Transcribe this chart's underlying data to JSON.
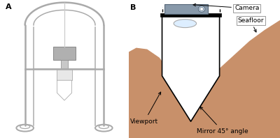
{
  "bg_color": "#ffffff",
  "panel_a_label": "A",
  "panel_b_label": "B",
  "frame_color": "#aaaaaa",
  "frame_lw": 1.8,
  "sediment_color": "#c8906a",
  "label_camera": "Camera",
  "label_seafloor": "Seafloor",
  "label_viewport": "Viewport",
  "label_mirror": "Mirror 45° angle",
  "camera_body": "#8899aa",
  "camera_edge": "#556677",
  "lens_color": "#ccddee",
  "annotation_fs": 6.5
}
